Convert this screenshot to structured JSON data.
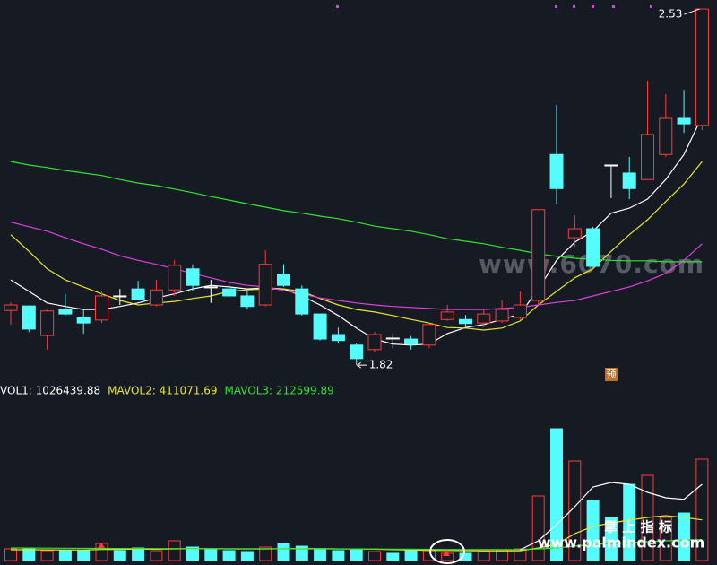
{
  "chart_data": [
    {
      "type": "candlestick",
      "open": [
        1.929,
        1.938,
        1.879,
        1.931,
        1.915,
        1.91,
        1.958,
        1.972,
        1.94,
        1.97,
        2.012,
        1.976,
        1.972,
        1.958,
        1.94,
        2.001,
        1.972,
        1.922,
        1.881,
        1.86,
        1.851,
        1.874,
        1.872,
        1.86,
        1.911,
        1.911,
        1.904,
        1.908,
        1.915,
        1.949,
        2.24,
        2.074,
        2.092,
        2.219,
        2.203,
        2.19,
        2.24,
        2.312,
        2.298
      ],
      "high": [
        1.945,
        1.938,
        1.931,
        1.962,
        1.931,
        1.967,
        1.972,
        1.988,
        1.99,
        2.029,
        2.021,
        1.99,
        1.988,
        1.967,
        2.049,
        2.021,
        1.979,
        1.922,
        1.895,
        1.863,
        1.886,
        1.883,
        1.878,
        1.904,
        1.94,
        1.92,
        1.931,
        1.949,
        1.967,
        2.13,
        2.339,
        2.119,
        2.096,
        2.219,
        2.235,
        2.387,
        2.36,
        2.369,
        2.53
      ],
      "low": [
        1.901,
        1.886,
        1.851,
        1.919,
        1.883,
        1.904,
        1.94,
        1.949,
        1.937,
        1.958,
        1.967,
        1.944,
        1.953,
        1.931,
        1.937,
        1.976,
        1.919,
        1.869,
        1.863,
        1.82,
        1.847,
        1.854,
        1.851,
        1.854,
        1.908,
        1.895,
        1.895,
        1.904,
        1.91,
        1.94,
        2.14,
        2.056,
        2.015,
        2.153,
        2.151,
        2.19,
        2.235,
        2.283,
        2.289
      ],
      "close": [
        1.94,
        1.892,
        1.928,
        1.922,
        1.904,
        1.958,
        1.958,
        1.951,
        1.97,
        2.019,
        1.979,
        1.976,
        1.958,
        1.937,
        2.021,
        1.979,
        1.922,
        1.872,
        1.869,
        1.833,
        1.881,
        1.874,
        1.862,
        1.901,
        1.926,
        1.903,
        1.922,
        1.931,
        1.94,
        2.13,
        2.172,
        2.092,
        2.017,
        2.219,
        2.172,
        2.28,
        2.312,
        2.301,
        2.53
      ],
      "up_color": "#ff3b3b",
      "down_color": "#54fcfc",
      "doji_color": "#ffffff",
      "series": [
        {
          "color": "#ffffff",
          "values": [
            1.99,
            1.967,
            1.944,
            1.937,
            1.931,
            1.931,
            1.937,
            1.944,
            1.954,
            1.962,
            1.972,
            1.979,
            1.976,
            1.972,
            1.974,
            1.972,
            1.958,
            1.94,
            1.919,
            1.894,
            1.872,
            1.862,
            1.86,
            1.862,
            1.883,
            1.895,
            1.901,
            1.911,
            1.922,
            1.972,
            2.029,
            2.065,
            2.087,
            2.123,
            2.133,
            2.151,
            2.19,
            2.24,
            2.316
          ]
        },
        {
          "color": "#e6e62e",
          "values": [
            2.08,
            2.047,
            2.012,
            1.99,
            1.976,
            1.962,
            1.949,
            1.94,
            1.944,
            1.947,
            1.953,
            1.958,
            1.967,
            1.97,
            1.972,
            1.972,
            1.967,
            1.953,
            1.94,
            1.931,
            1.926,
            1.919,
            1.911,
            1.904,
            1.895,
            1.894,
            1.89,
            1.894,
            1.908,
            1.94,
            1.967,
            1.994,
            2.012,
            2.047,
            2.08,
            2.11,
            2.146,
            2.181,
            2.226
          ]
        },
        {
          "color": "#e040e0",
          "values": [
            2.105,
            2.096,
            2.087,
            2.074,
            2.062,
            2.051,
            2.038,
            2.029,
            2.021,
            2.012,
            2.003,
            1.994,
            1.985,
            1.979,
            1.976,
            1.969,
            1.962,
            1.954,
            1.949,
            1.944,
            1.94,
            1.937,
            1.935,
            1.933,
            1.931,
            1.931,
            1.931,
            1.933,
            1.935,
            1.94,
            1.945,
            1.949,
            1.958,
            1.967,
            1.976,
            1.988,
            2.003,
            2.029,
            2.062
          ]
        },
        {
          "color": "#2ee62e",
          "values": [
            2.226,
            2.219,
            2.214,
            2.208,
            2.203,
            2.198,
            2.19,
            2.183,
            2.178,
            2.171,
            2.164,
            2.156,
            2.149,
            2.142,
            2.135,
            2.128,
            2.123,
            2.117,
            2.112,
            2.105,
            2.097,
            2.092,
            2.087,
            2.08,
            2.072,
            2.067,
            2.062,
            2.055,
            2.049,
            2.042,
            2.037,
            2.033,
            2.031,
            2.029,
            2.028,
            2.028,
            2.026,
            2.026,
            2.026
          ]
        }
      ],
      "ylim": [
        1.797,
        2.548
      ],
      "high_label": 2.53,
      "low_label": 1.82,
      "marker": "预"
    },
    {
      "type": "bar",
      "up_color": "#ff3b3b",
      "down_color": "#54fcfc",
      "series": [
        {
          "name": "VOL1: 1026439.88",
          "color": "#ffffff",
          "kind": "bar",
          "values": [
            118000,
            118000,
            100000,
            100000,
            100000,
            173000,
            100000,
            127000,
            100000,
            200000,
            136000,
            109000,
            100000,
            91000,
            136000,
            173000,
            145000,
            118000,
            100000,
            118000,
            91000,
            73000,
            100000,
            100000,
            73000,
            73000,
            91000,
            100000,
            118000,
            654000,
            1335000,
            1008000,
            609000,
            436000,
            772000,
            863000,
            436000,
            481000,
            1026439.88
          ]
        },
        {
          "name": "MAVOL2: 411071.69",
          "color": "#e6e62e",
          "kind": "line",
          "values": [
            109000,
            109000,
            108000,
            107000,
            106000,
            112000,
            113000,
            115000,
            114000,
            118000,
            121000,
            120000,
            118000,
            116000,
            117000,
            120000,
            122000,
            121000,
            118000,
            116000,
            114000,
            110000,
            106000,
            104000,
            102000,
            100000,
            98000,
            97000,
            99000,
            127000,
            164000,
            272000,
            345000,
            381000,
            409000,
            436000,
            454000,
            436000,
            411071.69
          ]
        },
        {
          "name": "MAVOL3: 212599.89",
          "color": "#2ee62e",
          "kind": "line",
          "values": [
            127000,
            126000,
            125000,
            124000,
            123000,
            123000,
            122000,
            122000,
            121000,
            121000,
            121000,
            120000,
            120000,
            119000,
            119000,
            119000,
            118000,
            118000,
            117000,
            117000,
            116000,
            115000,
            114000,
            113000,
            112000,
            111000,
            110000,
            110000,
            110000,
            118000,
            127000,
            145000,
            164000,
            172000,
            182000,
            191000,
            200000,
            205000,
            212599.89
          ]
        },
        {
          "color": "#ffffff",
          "kind": "line",
          "values": [
            null,
            null,
            null,
            null,
            null,
            null,
            null,
            null,
            null,
            null,
            null,
            null,
            null,
            null,
            null,
            null,
            null,
            null,
            null,
            null,
            null,
            null,
            null,
            null,
            null,
            null,
            null,
            null,
            109000,
            200000,
            363000,
            545000,
            745000,
            790000,
            772000,
            690000,
            636000,
            620000,
            772000
          ]
        }
      ],
      "ylim": [
        0,
        1635000
      ]
    }
  ],
  "watermarks": [
    "www.6070.com",
    "掌 上 指 标",
    "www.palmindex.com"
  ]
}
